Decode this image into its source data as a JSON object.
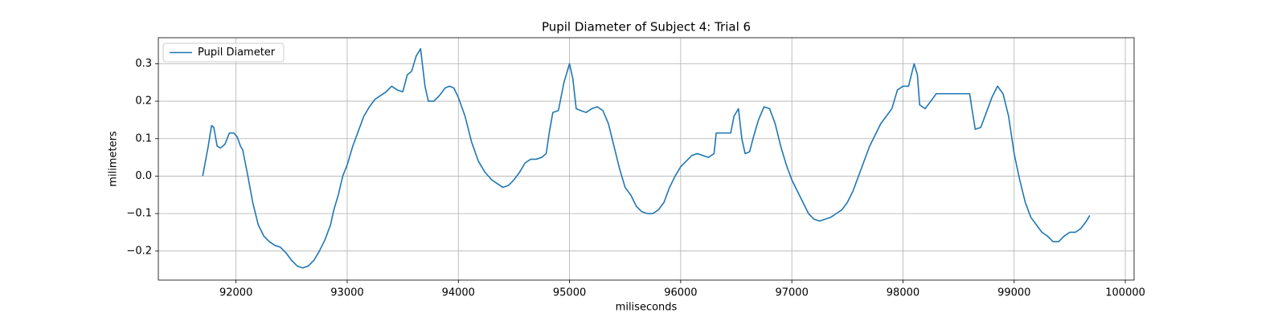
{
  "chart_data": {
    "type": "line",
    "title": "Pupil Diameter of Subject 4: Trial 6",
    "xlabel": "miliseconds",
    "ylabel": "milimeters",
    "x": [
      91700,
      91750,
      91780,
      91800,
      91830,
      91860,
      91900,
      91940,
      91980,
      92010,
      92040,
      92060,
      92100,
      92150,
      92200,
      92250,
      92300,
      92350,
      92400,
      92450,
      92500,
      92550,
      92600,
      92650,
      92700,
      92750,
      92800,
      92850,
      92880,
      92920,
      92960,
      93000,
      93050,
      93100,
      93150,
      93200,
      93250,
      93300,
      93350,
      93400,
      93450,
      93500,
      93540,
      93580,
      93620,
      93660,
      93700,
      93730,
      93780,
      93830,
      93880,
      93920,
      93960,
      94000,
      94060,
      94120,
      94180,
      94240,
      94300,
      94350,
      94400,
      94450,
      94500,
      94550,
      94600,
      94650,
      94700,
      94750,
      94790,
      94820,
      94850,
      94900,
      94950,
      95000,
      95030,
      95060,
      95100,
      95150,
      95200,
      95250,
      95300,
      95350,
      95400,
      95450,
      95500,
      95550,
      95600,
      95650,
      95700,
      95750,
      95800,
      95850,
      95900,
      95950,
      96000,
      96050,
      96100,
      96150,
      96200,
      96250,
      96300,
      96320,
      96400,
      96450,
      96480,
      96520,
      96550,
      96580,
      96620,
      96660,
      96700,
      96750,
      96800,
      96850,
      96900,
      96950,
      97000,
      97050,
      97100,
      97150,
      97200,
      97250,
      97300,
      97350,
      97400,
      97450,
      97500,
      97550,
      97600,
      97650,
      97700,
      97750,
      97800,
      97850,
      97900,
      97950,
      98000,
      98050,
      98100,
      98130,
      98150,
      98200,
      98250,
      98300,
      98400,
      98500,
      98600,
      98620,
      98650,
      98700,
      98750,
      98800,
      98850,
      98900,
      98950,
      99000,
      99050,
      99100,
      99150,
      99200,
      99250,
      99300,
      99350,
      99400,
      99450,
      99500,
      99550,
      99600,
      99650,
      99680
    ],
    "series": [
      {
        "name": "Pupil Diameter",
        "color": "#1f77b4",
        "values": [
          0.0,
          0.08,
          0.135,
          0.13,
          0.08,
          0.075,
          0.085,
          0.115,
          0.115,
          0.105,
          0.08,
          0.07,
          0.01,
          -0.07,
          -0.13,
          -0.16,
          -0.175,
          -0.185,
          -0.19,
          -0.205,
          -0.225,
          -0.24,
          -0.245,
          -0.24,
          -0.225,
          -0.2,
          -0.17,
          -0.13,
          -0.09,
          -0.05,
          0.0,
          0.03,
          0.08,
          0.12,
          0.16,
          0.185,
          0.205,
          0.215,
          0.225,
          0.24,
          0.23,
          0.225,
          0.27,
          0.28,
          0.32,
          0.34,
          0.24,
          0.2,
          0.2,
          0.215,
          0.235,
          0.24,
          0.235,
          0.21,
          0.16,
          0.09,
          0.04,
          0.01,
          -0.01,
          -0.02,
          -0.03,
          -0.025,
          -0.01,
          0.01,
          0.035,
          0.045,
          0.045,
          0.05,
          0.06,
          0.12,
          0.17,
          0.175,
          0.25,
          0.3,
          0.26,
          0.18,
          0.175,
          0.17,
          0.18,
          0.185,
          0.175,
          0.14,
          0.08,
          0.02,
          -0.03,
          -0.05,
          -0.08,
          -0.095,
          -0.1,
          -0.1,
          -0.09,
          -0.07,
          -0.03,
          0.0,
          0.025,
          0.04,
          0.055,
          0.06,
          0.055,
          0.05,
          0.06,
          0.115,
          0.115,
          0.115,
          0.16,
          0.18,
          0.1,
          0.06,
          0.065,
          0.11,
          0.15,
          0.185,
          0.18,
          0.14,
          0.08,
          0.03,
          -0.01,
          -0.04,
          -0.07,
          -0.1,
          -0.115,
          -0.12,
          -0.115,
          -0.11,
          -0.1,
          -0.09,
          -0.07,
          -0.04,
          0.0,
          0.04,
          0.08,
          0.11,
          0.14,
          0.16,
          0.18,
          0.23,
          0.24,
          0.24,
          0.3,
          0.27,
          0.19,
          0.18,
          0.2,
          0.22,
          0.22,
          0.22,
          0.22,
          0.18,
          0.125,
          0.13,
          0.17,
          0.21,
          0.24,
          0.22,
          0.16,
          0.06,
          -0.01,
          -0.07,
          -0.11,
          -0.13,
          -0.15,
          -0.16,
          -0.175,
          -0.175,
          -0.16,
          -0.15,
          -0.15,
          -0.14,
          -0.12,
          -0.105
        ]
      }
    ],
    "xlim": [
      91301,
      100079
    ],
    "ylim": [
      -0.2775,
      0.3694
    ],
    "xticks": [
      92000,
      93000,
      94000,
      95000,
      96000,
      97000,
      98000,
      99000,
      100000
    ],
    "yticks": [
      {
        "value": -0.2,
        "label": "−0.2"
      },
      {
        "value": -0.1,
        "label": "−0.1"
      },
      {
        "value": 0.0,
        "label": "0.0"
      },
      0.1,
      0.2,
      0.3
    ],
    "grid": true,
    "legend": "upper-left"
  }
}
